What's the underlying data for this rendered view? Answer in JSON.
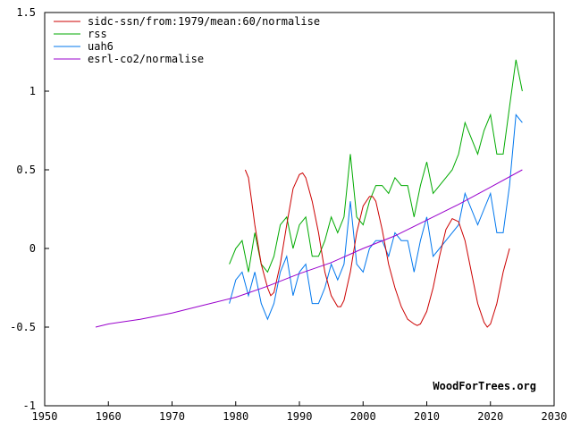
{
  "chart_data": {
    "type": "line",
    "title": "",
    "xlabel": "",
    "ylabel": "",
    "xlim": [
      1950,
      2030
    ],
    "ylim": [
      -1,
      1.5
    ],
    "x_ticks": [
      1950,
      1960,
      1970,
      1980,
      1990,
      2000,
      2010,
      2020,
      2030
    ],
    "y_ticks": [
      -1,
      -0.5,
      0,
      0.5,
      1,
      1.5
    ],
    "y_tick_labels": [
      "-1",
      "-0.5",
      "0",
      "0.5",
      "1",
      "1.5"
    ],
    "grid": false,
    "legend_position": "top-left",
    "credit": "WoodForTrees.org",
    "series": [
      {
        "name": "sidc-ssn/from:1979/mean:60/normalise",
        "color": "#cc0000",
        "x": [
          1981.5,
          1982,
          1982.5,
          1983,
          1984,
          1985,
          1985.5,
          1986,
          1987,
          1988,
          1989,
          1990,
          1990.5,
          1991,
          1992,
          1993,
          1994,
          1995,
          1996,
          1996.5,
          1997,
          1998,
          1999,
          2000,
          2001,
          2001.5,
          2002,
          2003,
          2004,
          2005,
          2006,
          2007,
          2008,
          2008.5,
          2009,
          2010,
          2011,
          2012,
          2013,
          2014,
          2015,
          2016,
          2017,
          2018,
          2019,
          2019.5,
          2020,
          2021,
          2022,
          2023
        ],
        "y": [
          0.5,
          0.45,
          0.3,
          0.15,
          -0.1,
          -0.25,
          -0.3,
          -0.28,
          -0.1,
          0.15,
          0.38,
          0.47,
          0.48,
          0.45,
          0.3,
          0.1,
          -0.15,
          -0.3,
          -0.37,
          -0.37,
          -0.33,
          -0.15,
          0.1,
          0.27,
          0.33,
          0.33,
          0.3,
          0.12,
          -0.1,
          -0.25,
          -0.37,
          -0.45,
          -0.48,
          -0.49,
          -0.48,
          -0.4,
          -0.25,
          -0.05,
          0.12,
          0.19,
          0.17,
          0.05,
          -0.15,
          -0.35,
          -0.47,
          -0.5,
          -0.48,
          -0.35,
          -0.15,
          0.0
        ]
      },
      {
        "name": "rss",
        "color": "#00aa00",
        "x": [
          1979,
          1980,
          1981,
          1982,
          1983,
          1984,
          1985,
          1986,
          1987,
          1988,
          1989,
          1990,
          1991,
          1992,
          1993,
          1994,
          1995,
          1996,
          1997,
          1998,
          1999,
          2000,
          2001,
          2002,
          2003,
          2004,
          2005,
          2006,
          2007,
          2008,
          2009,
          2010,
          2011,
          2012,
          2013,
          2014,
          2015,
          2016,
          2017,
          2018,
          2019,
          2020,
          2021,
          2022,
          2023,
          2024,
          2025
        ],
        "y": [
          -0.1,
          0.0,
          0.05,
          -0.15,
          0.1,
          -0.1,
          -0.15,
          -0.05,
          0.15,
          0.2,
          0.0,
          0.15,
          0.2,
          -0.05,
          -0.05,
          0.05,
          0.2,
          0.1,
          0.2,
          0.6,
          0.2,
          0.15,
          0.3,
          0.4,
          0.4,
          0.35,
          0.45,
          0.4,
          0.4,
          0.2,
          0.4,
          0.55,
          0.35,
          0.4,
          0.45,
          0.5,
          0.6,
          0.8,
          0.7,
          0.6,
          0.75,
          0.85,
          0.6,
          0.6,
          0.9,
          1.2,
          1.0
        ]
      },
      {
        "name": "uah6",
        "color": "#0077ee",
        "x": [
          1979,
          1980,
          1981,
          1982,
          1983,
          1984,
          1985,
          1986,
          1987,
          1988,
          1989,
          1990,
          1991,
          1992,
          1993,
          1994,
          1995,
          1996,
          1997,
          1998,
          1999,
          2000,
          2001,
          2002,
          2003,
          2004,
          2005,
          2006,
          2007,
          2008,
          2009,
          2010,
          2011,
          2012,
          2013,
          2014,
          2015,
          2016,
          2017,
          2018,
          2019,
          2020,
          2021,
          2022,
          2023,
          2024,
          2025
        ],
        "y": [
          -0.35,
          -0.2,
          -0.15,
          -0.3,
          -0.15,
          -0.35,
          -0.45,
          -0.35,
          -0.15,
          -0.05,
          -0.3,
          -0.15,
          -0.1,
          -0.35,
          -0.35,
          -0.25,
          -0.1,
          -0.2,
          -0.1,
          0.3,
          -0.1,
          -0.15,
          0.0,
          0.05,
          0.05,
          -0.05,
          0.1,
          0.05,
          0.05,
          -0.15,
          0.05,
          0.2,
          -0.05,
          0.0,
          0.05,
          0.1,
          0.15,
          0.35,
          0.25,
          0.15,
          0.25,
          0.35,
          0.1,
          0.1,
          0.4,
          0.85,
          0.8
        ]
      },
      {
        "name": "esrl-co2/normalise",
        "color": "#9900cc",
        "x": [
          1958,
          1960,
          1965,
          1970,
          1975,
          1980,
          1985,
          1990,
          1995,
          2000,
          2005,
          2010,
          2015,
          2020,
          2025
        ],
        "y": [
          -0.5,
          -0.48,
          -0.45,
          -0.41,
          -0.36,
          -0.31,
          -0.24,
          -0.16,
          -0.09,
          0.0,
          0.08,
          0.18,
          0.28,
          0.39,
          0.5
        ]
      }
    ]
  }
}
